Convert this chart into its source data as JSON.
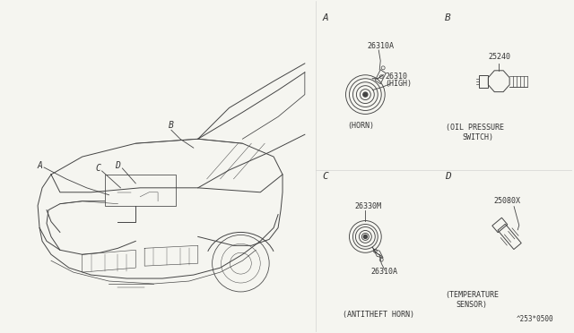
{
  "bg_color": "#f5f5f0",
  "line_color": "#444444",
  "text_color": "#333333",
  "labels": {
    "A_section": "A",
    "B_section": "B",
    "C_section": "C",
    "D_section": "D",
    "horn_part1": "26310A",
    "horn_part2": "26310",
    "horn_part2b": "(HIGH)",
    "horn_label": "(HORN)",
    "oil_part": "25240",
    "oil_label1": "(OIL PRESSURE",
    "oil_label2": "SWITCH)",
    "antitheft_part1": "26330M",
    "antitheft_part2": "26310A",
    "antitheft_label": "(ANTITHEFT HORN)",
    "temp_part": "25080X",
    "temp_label1": "(TEMPERATURE",
    "temp_label2": "SENSOR)",
    "footer": "^253*0500"
  },
  "car_label_A": "A",
  "car_label_B": "B",
  "car_label_C": "C",
  "car_label_D": "D"
}
